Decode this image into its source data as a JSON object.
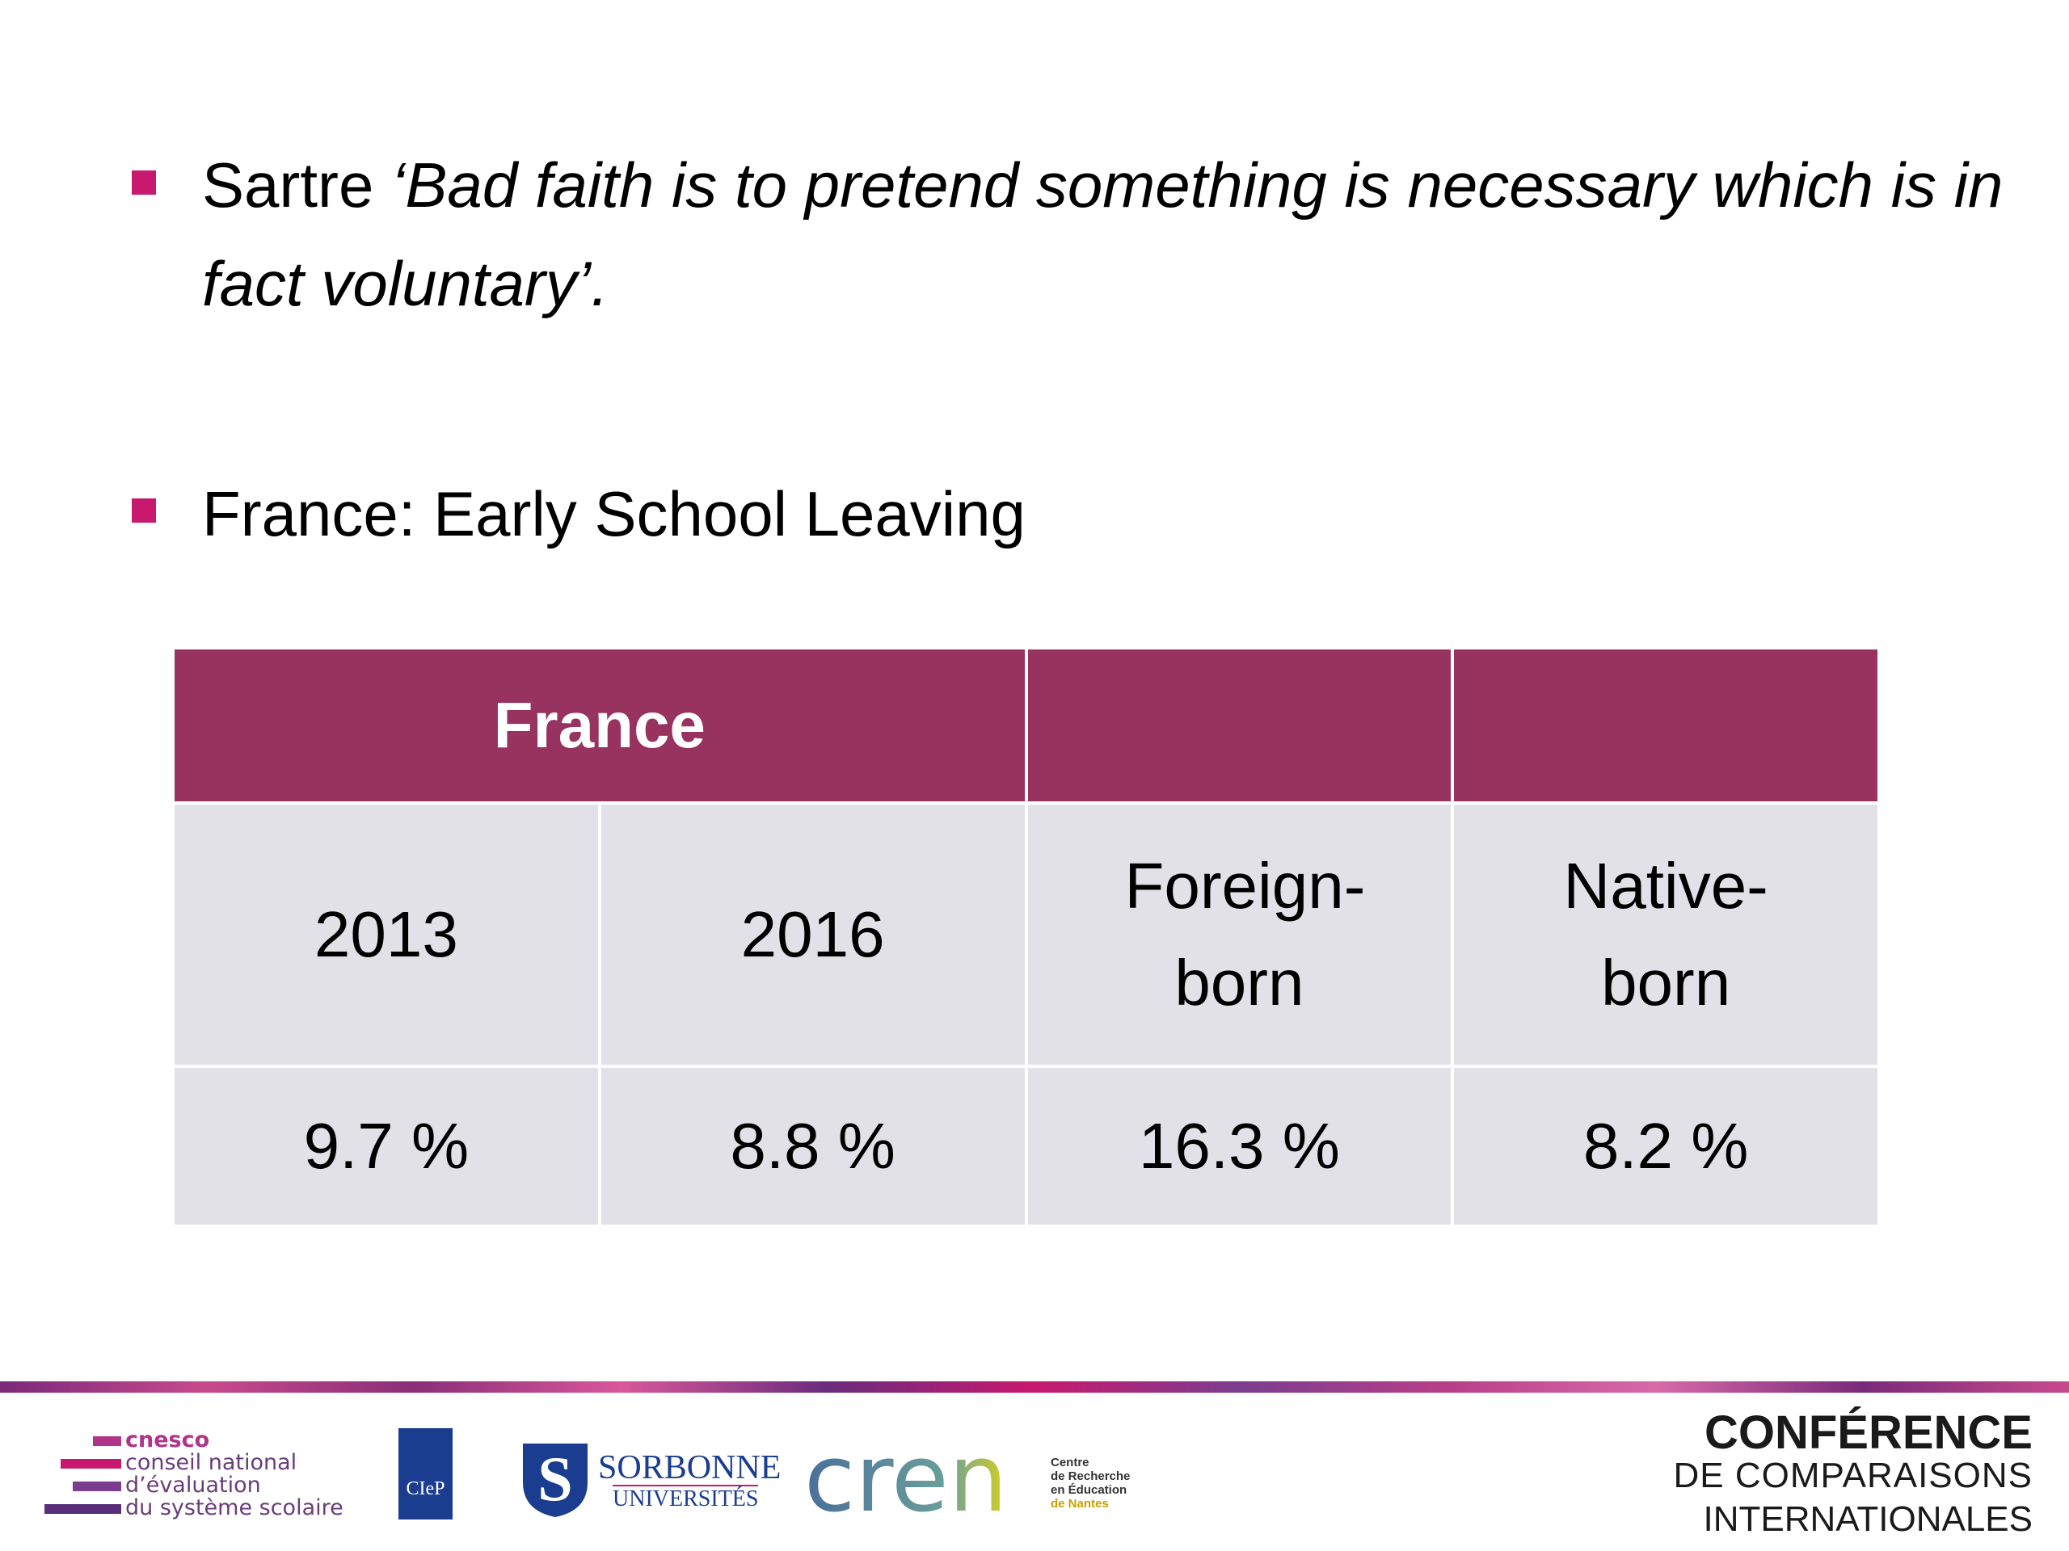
{
  "bullets": [
    {
      "prefix": "Sartre",
      "quote": "‘Bad faith is to pretend something is necessary which is in fact voluntary’."
    },
    {
      "text": "France: Early School Leaving"
    }
  ],
  "table": {
    "header": [
      "France"
    ],
    "rows": [
      [
        "2013",
        "2016",
        "Foreign-born",
        "Native-born"
      ],
      [
        "9.7 %",
        "8.8 %",
        "16.3 %",
        "8.2 %"
      ]
    ]
  },
  "footer": {
    "cnesco": [
      "cnesco",
      "conseil national",
      "d’évaluation",
      "du système scolaire"
    ],
    "ciep": "CIeP",
    "sorbonne": [
      "SORBONNE",
      "UNIVERSITÉS"
    ],
    "cren": {
      "logo": "cren",
      "lines": [
        "Centre",
        "de Recherche",
        "en Éducation",
        "de Nantes"
      ]
    },
    "conference": [
      "CONFÉRENCE",
      "DE COMPARAISONS",
      "INTERNATIONALES"
    ]
  }
}
